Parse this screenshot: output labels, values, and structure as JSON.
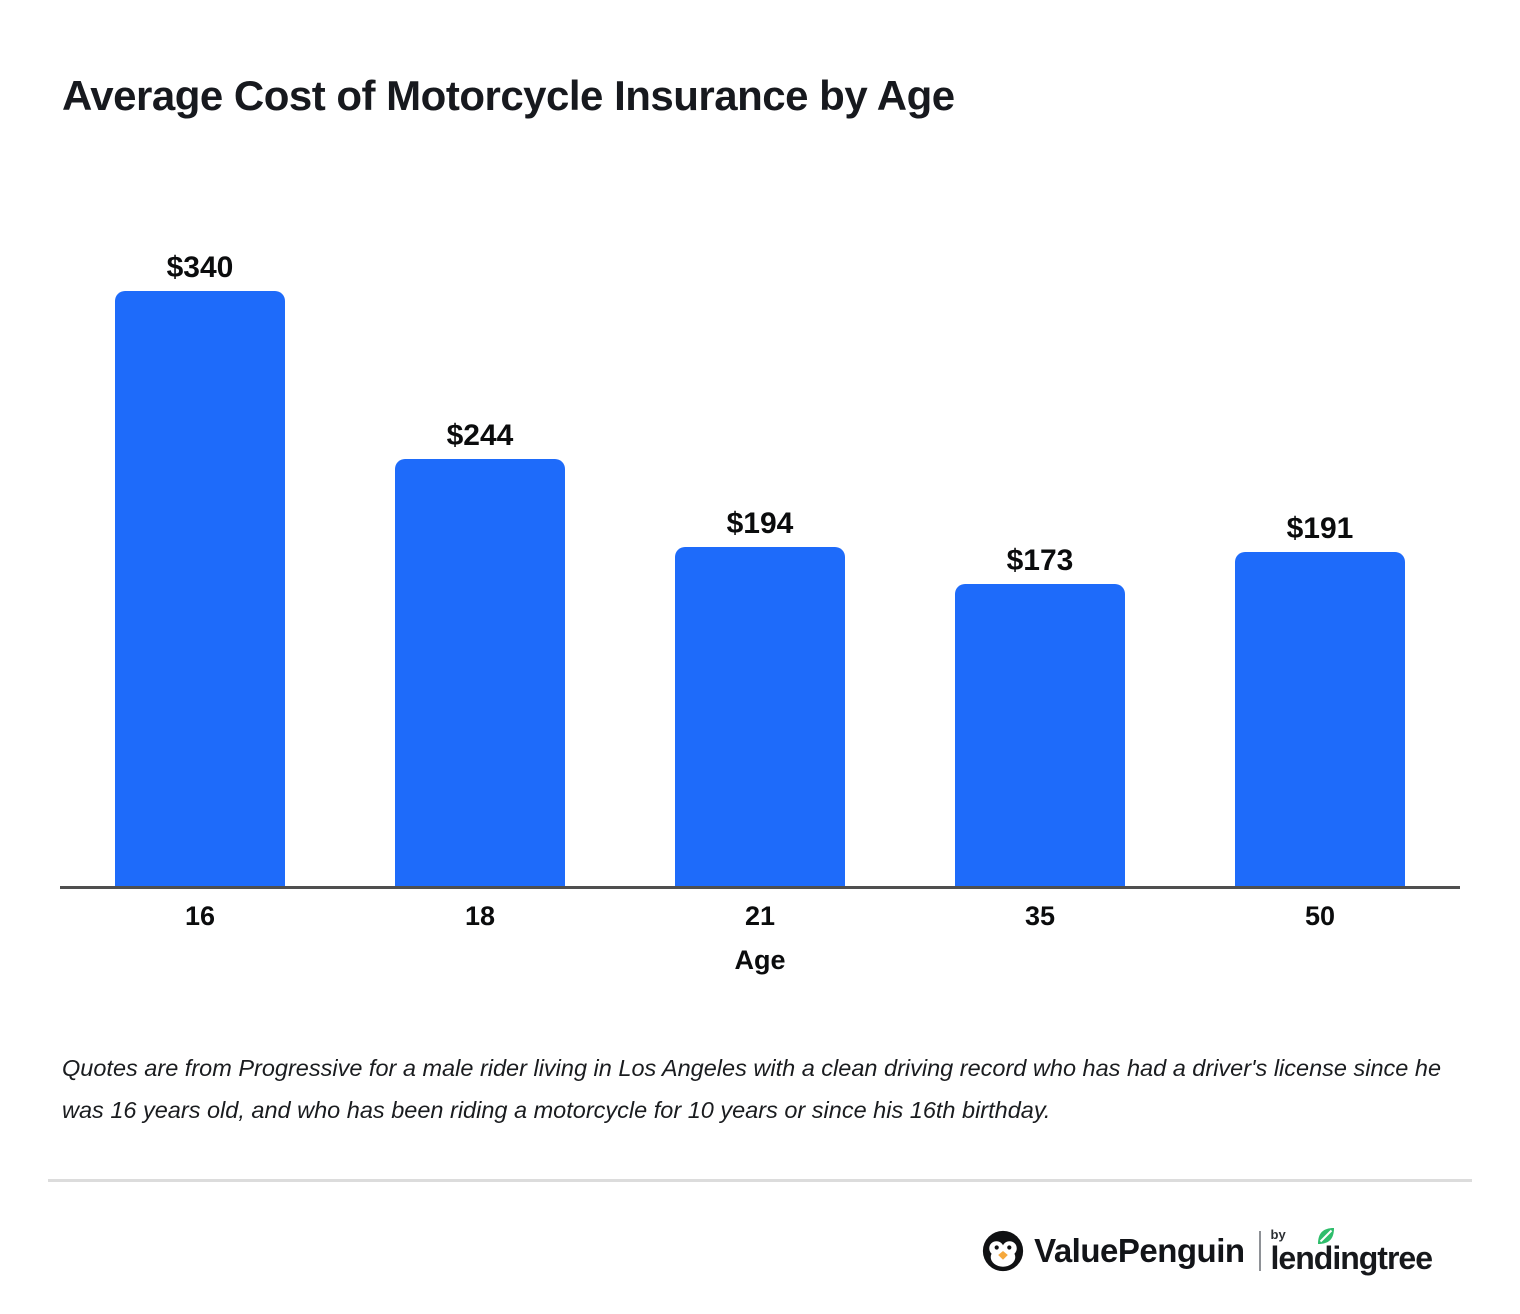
{
  "title": "Average Cost of Motorcycle Insurance by Age",
  "chart_data": {
    "type": "bar",
    "categories": [
      "16",
      "18",
      "21",
      "35",
      "50"
    ],
    "values": [
      340,
      244,
      194,
      173,
      191
    ],
    "value_labels": [
      "$340",
      "$244",
      "$194",
      "$173",
      "$191"
    ],
    "title": "Average Cost of Motorcycle Insurance by Age",
    "xlabel": "Age",
    "ylabel": "",
    "ylim": [
      0,
      350
    ],
    "grid": false,
    "legend": false,
    "bar_color": "#1e6bfa",
    "axis_color": "#4f4f4f"
  },
  "footnote": "Quotes are from Progressive for a male rider living in Los Angeles with a clean driving record who has had a driver's license since he was 16 years old, and who has been riding a motorcycle for 10 years or since his 16th birthday.",
  "branding": {
    "valuepenguin": "ValuePenguin",
    "by": "by",
    "lendingtree": "lendingtree",
    "leaf_color": "#2ebd6b",
    "penguin_beak_color": "#f5a83c"
  }
}
